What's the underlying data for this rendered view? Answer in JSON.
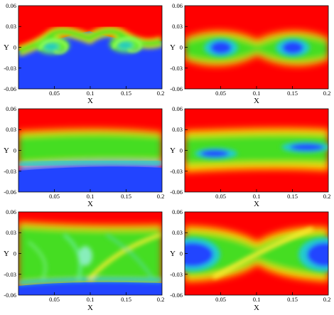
{
  "chart_data": [
    {
      "type": "heatmap",
      "panel": "top-left",
      "variable": "mixing",
      "xlabel": "X",
      "ylabel": "Y",
      "xlim": [
        0,
        0.2
      ],
      "ylim": [
        -0.06,
        0.06
      ],
      "xticks": [
        "0.05",
        "0.1",
        "0.15",
        "0.2"
      ],
      "yticks": [
        "0.06",
        "0.03",
        "0",
        "-0.03",
        "-0.06"
      ],
      "colors": {
        "high": "#ff0000",
        "low": "#2244ff",
        "mid": "#33dd22"
      },
      "features": {
        "rollups": 2,
        "interface_y": 0.0,
        "interface_amplitude": 0.01
      }
    },
    {
      "type": "heatmap",
      "panel": "top-right",
      "variable": "vorticity",
      "xlabel": "X",
      "ylabel": "Y",
      "xlim": [
        0,
        0.2
      ],
      "ylim": [
        -0.06,
        0.06
      ],
      "xticks": [
        "0.05",
        "0.1",
        "0.15",
        "0.2"
      ],
      "yticks": [
        "0.06",
        "0.03",
        "0",
        "-0.03",
        "-0.06"
      ],
      "colors": {
        "background": "#ff0000",
        "core": "#2244ff",
        "band": "#33dd22"
      },
      "features": {
        "vortex_cores_x": [
          0.05,
          0.15
        ],
        "core_y": 0.0
      }
    },
    {
      "type": "heatmap",
      "panel": "middle-left",
      "variable": "mixing",
      "xlabel": "X",
      "ylabel": "Y",
      "xlim": [
        0,
        0.2
      ],
      "ylim": [
        -0.06,
        0.06
      ],
      "xticks": [
        "0.05",
        "0.1",
        "0.15",
        "0.2"
      ],
      "yticks": [
        "0.06",
        "0.03",
        "0",
        "-0.03",
        "-0.06"
      ],
      "colors": {
        "high": "#ff0000",
        "low": "#2244ff",
        "mid": "#33dd22"
      },
      "features": {
        "upper_edge_y": 0.025,
        "lower_edge_y": -0.025
      }
    },
    {
      "type": "heatmap",
      "panel": "middle-right",
      "variable": "vorticity",
      "xlabel": "X",
      "ylabel": "Y",
      "xlim": [
        0,
        0.2
      ],
      "ylim": [
        -0.06,
        0.06
      ],
      "xticks": [
        "0.05",
        "0.1",
        "0.15",
        "0.2"
      ],
      "yticks": [
        "0.06",
        "0.03",
        "0",
        "-0.03",
        "-0.06"
      ],
      "colors": {
        "background": "#ff0000",
        "core": "#2244ff",
        "band": "#33dd22"
      },
      "features": {
        "vortex_cores_x": [
          0.04,
          0.17
        ],
        "core_y": [
          -0.003,
          0.005
        ]
      }
    },
    {
      "type": "heatmap",
      "panel": "bottom-left",
      "variable": "mixing",
      "xlabel": "X",
      "ylabel": "Y",
      "xlim": [
        0,
        0.2
      ],
      "ylim": [
        -0.06,
        0.06
      ],
      "xticks": [
        "0.05",
        "0.1",
        "0.15",
        "0.2"
      ],
      "yticks": [
        "0.06",
        "0.03",
        "0",
        "-0.03",
        "-0.06"
      ],
      "colors": {
        "high": "#ff0000",
        "low": "#2244ff",
        "mid": "#33dd22"
      },
      "features": {
        "upper_edge_y": 0.035,
        "lower_edge_y": -0.04
      }
    },
    {
      "type": "heatmap",
      "panel": "bottom-right",
      "variable": "vorticity",
      "xlabel": "X",
      "ylabel": "Y",
      "xlim": [
        0,
        0.2
      ],
      "ylim": [
        -0.06,
        0.06
      ],
      "xticks": [
        "0.05",
        "0.1",
        "0.15",
        "0.2"
      ],
      "yticks": [
        "0.06",
        "0.03",
        "0",
        "-0.03",
        "-0.06"
      ],
      "colors": {
        "background": "#ff0000",
        "core": "#2244ff",
        "band": "#33dd22"
      },
      "features": {
        "vortex_cores_x": [
          0.0,
          0.2
        ],
        "core_y": 0.0
      }
    }
  ]
}
